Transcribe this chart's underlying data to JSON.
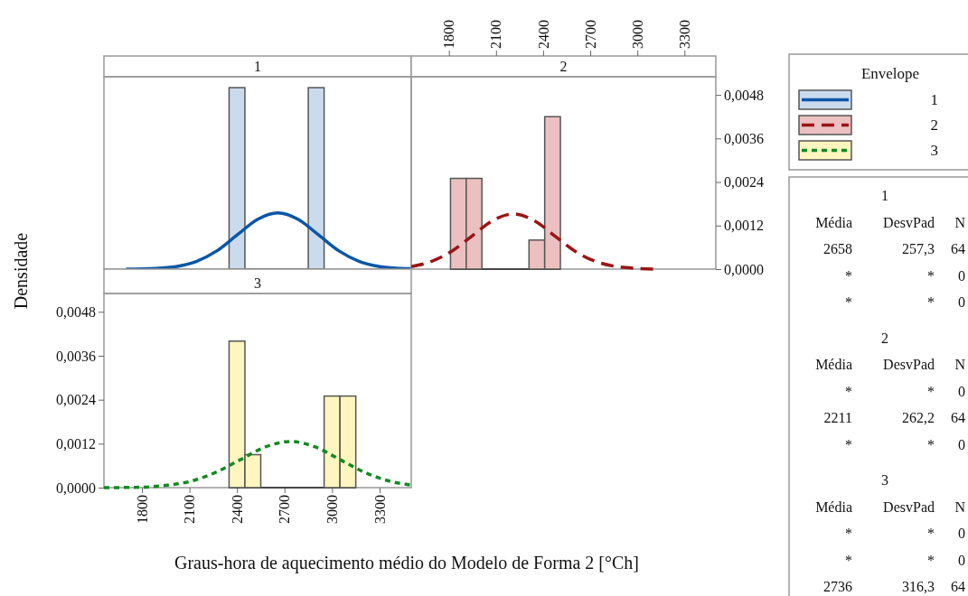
{
  "chart_data": [
    {
      "type": "histogram",
      "xlim": [
        1560,
        3500
      ],
      "ylim": [
        0,
        0.0053
      ],
      "legend": "top right",
      "legend_title": "Envelope",
      "series": [
        {
          "type": "histogram",
          "name": "1",
          "color": "#cbdbee",
          "bins": [
            2350,
            2450,
            2550,
            2650,
            2750,
            2850,
            2950
          ],
          "values": [
            0.005,
            0,
            0,
            0,
            0,
            0.005
          ]
        },
        {
          "type": "line",
          "color": "#0a56a8",
          "line_style": "solid",
          "x": [
            1700,
            1886,
            2015,
            2143,
            2272,
            2401,
            2529,
            2658,
            2787,
            2915,
            3044,
            3173,
            3301,
            3430,
            3500
          ],
          "values": [
            0,
            2e-05,
            7e-05,
            0.00021,
            0.0005,
            0.00094,
            0.00137,
            0.00155,
            0.00137,
            0.00094,
            0.0005,
            0.00021,
            7e-05,
            2e-05,
            1e-05
          ]
        }
      ]
    },
    {
      "type": "histogram",
      "xlim": [
        1560,
        3500
      ],
      "xticks": [
        1800,
        2100,
        2400,
        2700,
        3000,
        3300
      ],
      "ylim": [
        0,
        0.0053
      ],
      "yticks": [
        {
          "value": 0,
          "label": "0,0000"
        },
        {
          "value": 0.0012,
          "label": "0,0012"
        },
        {
          "value": 0.0024,
          "label": "0,0024"
        },
        {
          "value": 0.0036,
          "label": "0,0036"
        },
        {
          "value": 0.0048,
          "label": "0,0048"
        }
      ],
      "series": [
        {
          "type": "histogram",
          "name": "2",
          "color": "#ecc0c0",
          "bins": [
            1810,
            1910,
            2010,
            2110,
            2210,
            2310,
            2410,
            2510
          ],
          "values": [
            0.0025,
            0.0025,
            0,
            0,
            0,
            0.0008,
            0.0042
          ]
        },
        {
          "type": "line",
          "color": "#9c1414",
          "line_style": "dashed",
          "x": [
            1560,
            1687,
            1818,
            1949,
            2080,
            2211,
            2342,
            2473,
            2604,
            2735,
            2867,
            2998,
            3129
          ],
          "values": [
            7e-05,
            0.00021,
            0.00049,
            0.00092,
            0.00134,
            0.00152,
            0.00134,
            0.00092,
            0.00049,
            0.00021,
            7e-05,
            2e-05,
            0
          ]
        }
      ]
    },
    {
      "type": "histogram",
      "xlabel": "Graus-hora de aquecimento médio do Modelo de Forma 2 [°Ch]",
      "ylabel": "Densidade",
      "xlim": [
        1560,
        3500
      ],
      "xticks": [
        1800,
        2100,
        2400,
        2700,
        3000,
        3300
      ],
      "ylim": [
        0,
        0.0053
      ],
      "yticks": [
        {
          "value": 0,
          "label": "0,0000"
        },
        {
          "value": 0.0012,
          "label": "0,0012"
        },
        {
          "value": 0.0024,
          "label": "0,0024"
        },
        {
          "value": 0.0036,
          "label": "0,0036"
        },
        {
          "value": 0.0048,
          "label": "0,0048"
        }
      ],
      "series": [
        {
          "type": "histogram",
          "name": "3",
          "color": "#fff6bf",
          "bins": [
            2350,
            2450,
            2550,
            2650,
            2750,
            2850,
            2950,
            3050,
            3150
          ],
          "values": [
            0.004,
            0.0009,
            0,
            0,
            0,
            0,
            0.0025,
            0.0025
          ]
        },
        {
          "type": "line",
          "color": "#128a22",
          "line_style": "dotted",
          "x": [
            1560,
            1787,
            1945,
            2103,
            2262,
            2420,
            2578,
            2736,
            2894,
            3052,
            3210,
            3369,
            3500
          ],
          "values": [
            0,
            1e-05,
            6e-05,
            0.00017,
            0.00041,
            0.00076,
            0.00111,
            0.00126,
            0.00111,
            0.00076,
            0.00041,
            0.00017,
            7e-05
          ]
        }
      ]
    },
    {
      "type": "other",
      "annotations": [
        "1",
        "Média DesvPad N",
        "2658 257,3 64",
        "* * 0",
        "* * 0",
        "2",
        "Média DesvPad N",
        "* * 0",
        "2211 262,2 64",
        "* * 0",
        "3",
        "Média DesvPad N",
        "* * 0",
        "* * 0",
        "2736 316,3 64"
      ]
    }
  ]
}
